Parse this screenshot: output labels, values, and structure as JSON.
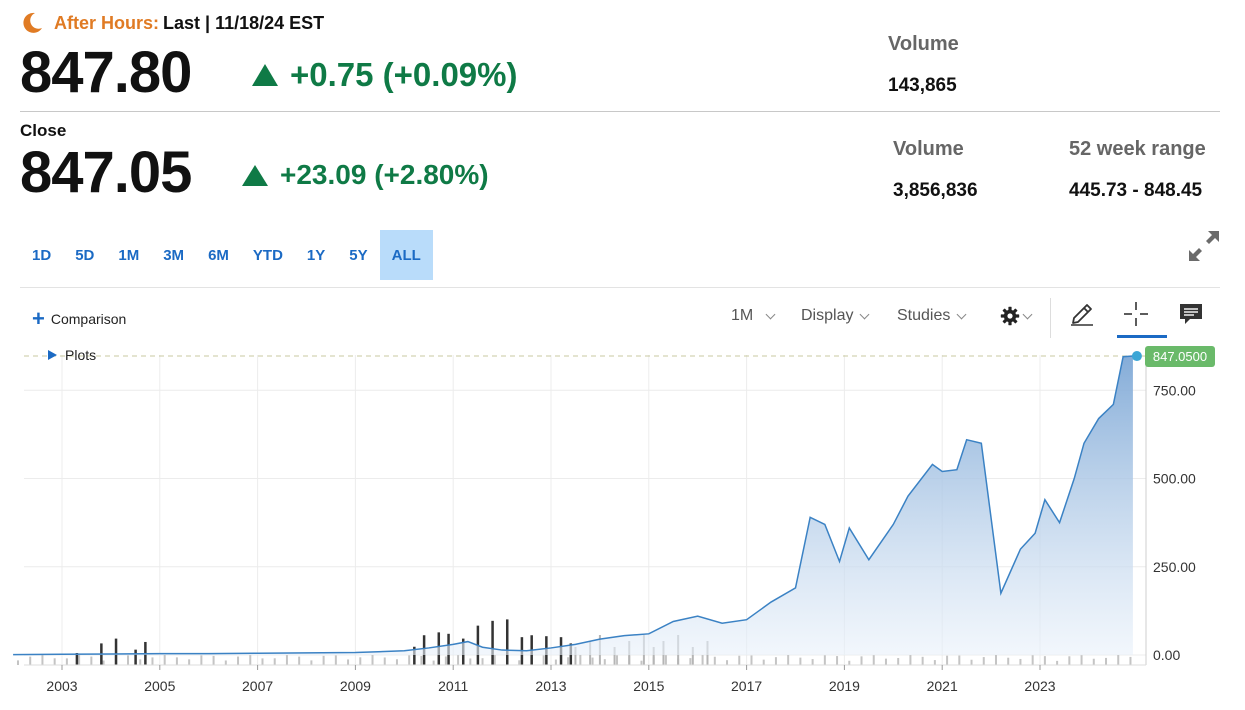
{
  "after_hours": {
    "label": "After Hours:",
    "last_text": "Last | 11/18/24 EST",
    "price": "847.80",
    "change": "+0.75 (+0.09%)",
    "volume_label": "Volume",
    "volume_value": "143,865"
  },
  "close": {
    "label": "Close",
    "price": "847.05",
    "change": "+23.09 (+2.80%)",
    "volume_label": "Volume",
    "volume_value": "3,856,836",
    "range_label": "52 week range",
    "range_value": "445.73 - 848.45"
  },
  "ranges": [
    "1D",
    "5D",
    "1M",
    "3M",
    "6M",
    "YTD",
    "1Y",
    "5Y",
    "ALL"
  ],
  "active_range": "ALL",
  "toolbar": {
    "comparison": "Comparison",
    "interval": "1M",
    "display": "Display",
    "studies": "Studies"
  },
  "plots_label": "Plots",
  "colors": {
    "positive": "#0f7a46",
    "after_hours": "#e07b24",
    "accent": "#1b6ac4",
    "line": "#3b82c4",
    "price_tag": "#6aba6a"
  },
  "icons": [
    "moon-icon",
    "up-triangle-icon",
    "expand-icon",
    "plus-icon",
    "gear-icon",
    "pencil-icon",
    "crosshair-icon",
    "comment-icon",
    "play-icon"
  ],
  "chart_data": {
    "type": "area",
    "x_ticks": [
      "2003",
      "2005",
      "2007",
      "2009",
      "2011",
      "2013",
      "2015",
      "2017",
      "2019",
      "2021",
      "2023"
    ],
    "y_ticks": [
      "0.00",
      "250.00",
      "500.00",
      "750.00"
    ],
    "ylim": [
      0,
      850
    ],
    "last_price_label": "847.0500",
    "last_price": 847.05,
    "series": [
      {
        "x": [
          2002.0,
          2003.0,
          2004.0,
          2005.0,
          2006.0,
          2007.0,
          2008.0,
          2009.0,
          2010.0,
          2010.5,
          2011.0,
          2011.3,
          2011.6,
          2012.0,
          2012.5,
          2013.0,
          2013.5,
          2014.0,
          2014.5,
          2015.0,
          2015.5,
          2016.0,
          2016.5,
          2017.0,
          2017.5,
          2018.0,
          2018.3,
          2018.6,
          2018.9,
          2019.1,
          2019.5,
          2020.0,
          2020.3,
          2020.8,
          2021.0,
          2021.3,
          2021.5,
          2021.8,
          2022.2,
          2022.6,
          2022.9,
          2023.1,
          2023.4,
          2023.7,
          2023.9,
          2024.2,
          2024.5,
          2024.7,
          2024.9
        ],
        "values": [
          1,
          2,
          3,
          4,
          4,
          5,
          6,
          7,
          12,
          20,
          30,
          38,
          22,
          14,
          12,
          20,
          30,
          45,
          55,
          60,
          95,
          110,
          90,
          100,
          150,
          190,
          390,
          370,
          265,
          360,
          270,
          370,
          450,
          540,
          520,
          525,
          610,
          600,
          175,
          300,
          345,
          440,
          375,
          500,
          600,
          670,
          710,
          845,
          847
        ]
      }
    ],
    "volume": {
      "x": [
        2003.3,
        2003.8,
        2004.1,
        2004.5,
        2004.7,
        2010.2,
        2010.4,
        2010.7,
        2010.9,
        2011.2,
        2011.5,
        2011.8,
        2012.1,
        2012.4,
        2012.6,
        2012.9,
        2013.2,
        2013.4
      ],
      "values": [
        0.25,
        0.45,
        0.55,
        0.32,
        0.48,
        0.38,
        0.62,
        0.68,
        0.65,
        0.55,
        0.82,
        0.92,
        0.95,
        0.58,
        0.62,
        0.6,
        0.58,
        0.45
      ]
    }
  }
}
